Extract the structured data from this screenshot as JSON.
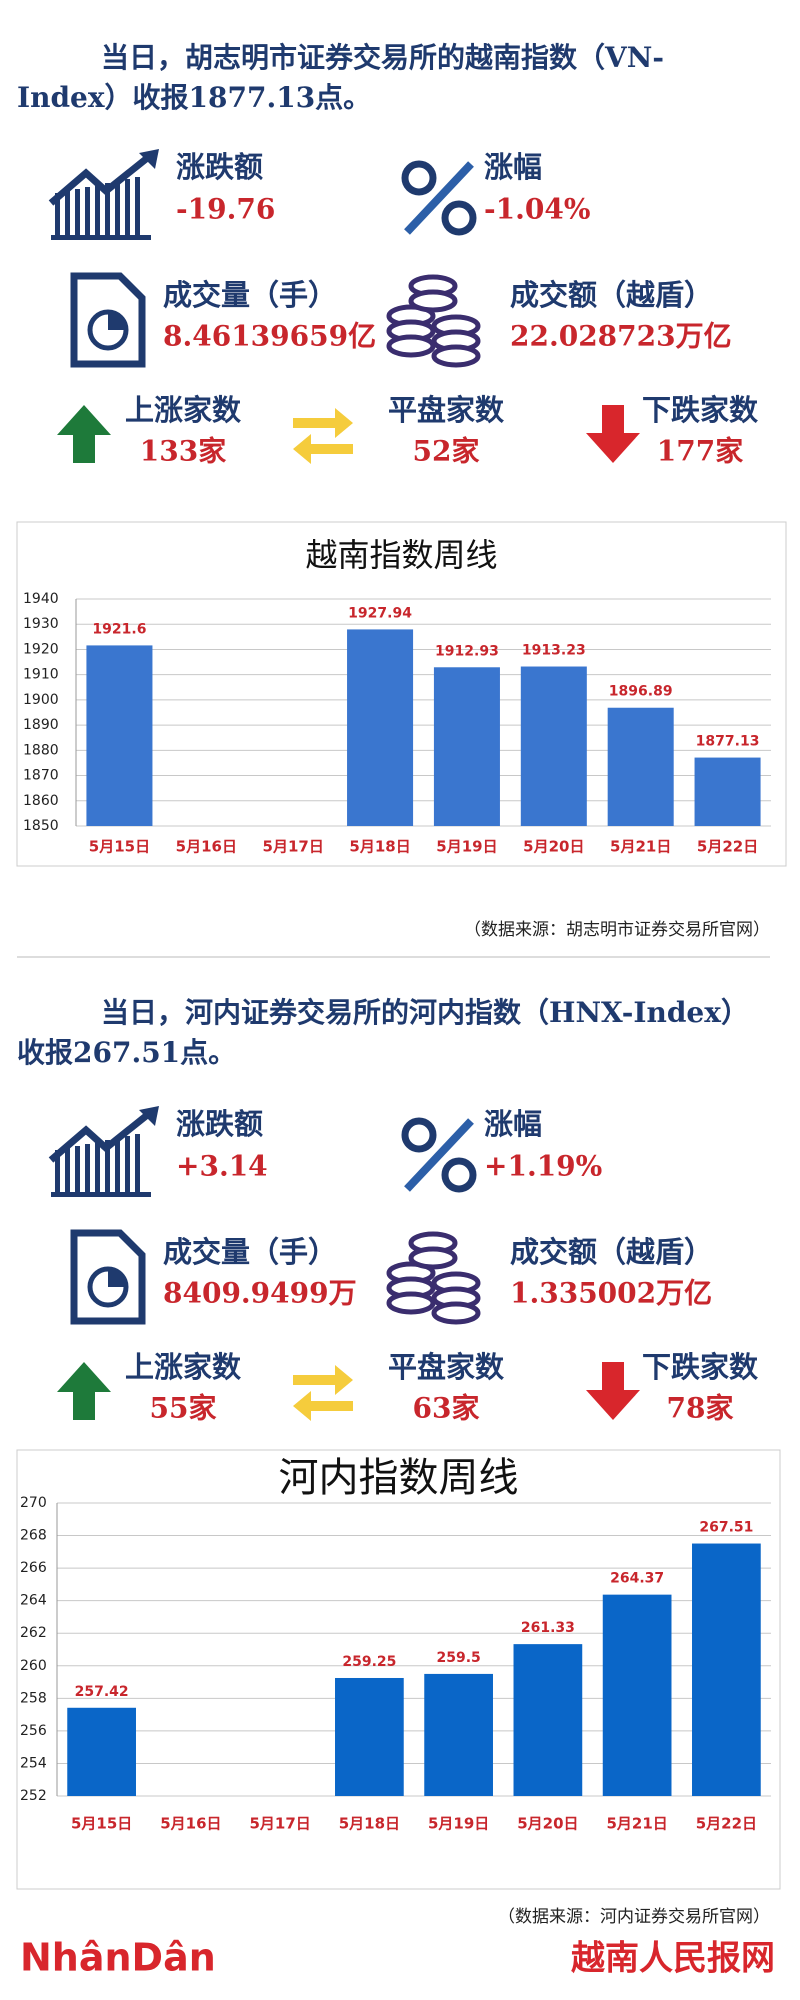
{
  "sections": [
    {
      "headline": "当日，胡志明市证券交易所的越南指数（VN-Index）收报1877.13点。",
      "stats": [
        {
          "label": "涨跌额",
          "value": "-19.76"
        },
        {
          "label": "涨幅",
          "value": "-1.04%"
        },
        {
          "label": "成交量（手）",
          "value": "8.46139659亿"
        },
        {
          "label": "成交额（越盾）",
          "value": "22.028723万亿"
        },
        {
          "label": "上涨家数",
          "value": "133家"
        },
        {
          "label": "平盘家数",
          "value": "52家"
        },
        {
          "label": "下跌家数",
          "value": "177家"
        }
      ],
      "source": "（数据来源：胡志明市证券交易所官网）"
    },
    {
      "headline": "当日，河内证券交易所的河内指数（HNX-Index）收报267.51点。",
      "stats": [
        {
          "label": "涨跌额",
          "value": "+3.14"
        },
        {
          "label": "涨幅",
          "value": "+1.19%"
        },
        {
          "label": "成交量（手）",
          "value": "8409.9499万"
        },
        {
          "label": "成交额（越盾）",
          "value": "1.335002万亿"
        },
        {
          "label": "上涨家数",
          "value": "55家"
        },
        {
          "label": "平盘家数",
          "value": "63家"
        },
        {
          "label": "下跌家数",
          "value": "78家"
        }
      ],
      "source": "（数据来源：河内证券交易所官网）"
    }
  ],
  "chart_data": [
    {
      "type": "bar",
      "title": "越南指数周线",
      "categories": [
        "5月15日",
        "5月16日",
        "5月17日",
        "5月18日",
        "5月19日",
        "5月20日",
        "5月21日",
        "5月22日"
      ],
      "values": [
        1921.6,
        null,
        null,
        1927.94,
        1912.93,
        1913.23,
        1896.89,
        1877.13
      ],
      "color": "#3a76cf",
      "ylim": [
        1850,
        1940
      ],
      "yticks": [
        1850,
        1860,
        1870,
        1880,
        1890,
        1900,
        1910,
        1920,
        1930,
        1940
      ],
      "grid": true
    },
    {
      "type": "bar",
      "title": "河内指数周线",
      "categories": [
        "5月15日",
        "5月16日",
        "5月17日",
        "5月18日",
        "5月19日",
        "5月20日",
        "5月21日",
        "5月22日"
      ],
      "values": [
        257.42,
        null,
        null,
        259.25,
        259.5,
        261.33,
        264.37,
        267.51
      ],
      "color": "#0a66c8",
      "ylim": [
        252,
        270
      ],
      "yticks": [
        252,
        254,
        256,
        258,
        260,
        262,
        264,
        266,
        268,
        270
      ],
      "grid": true
    }
  ],
  "footer": {
    "logo": "NhânDân",
    "brand": "越南人民报网"
  }
}
